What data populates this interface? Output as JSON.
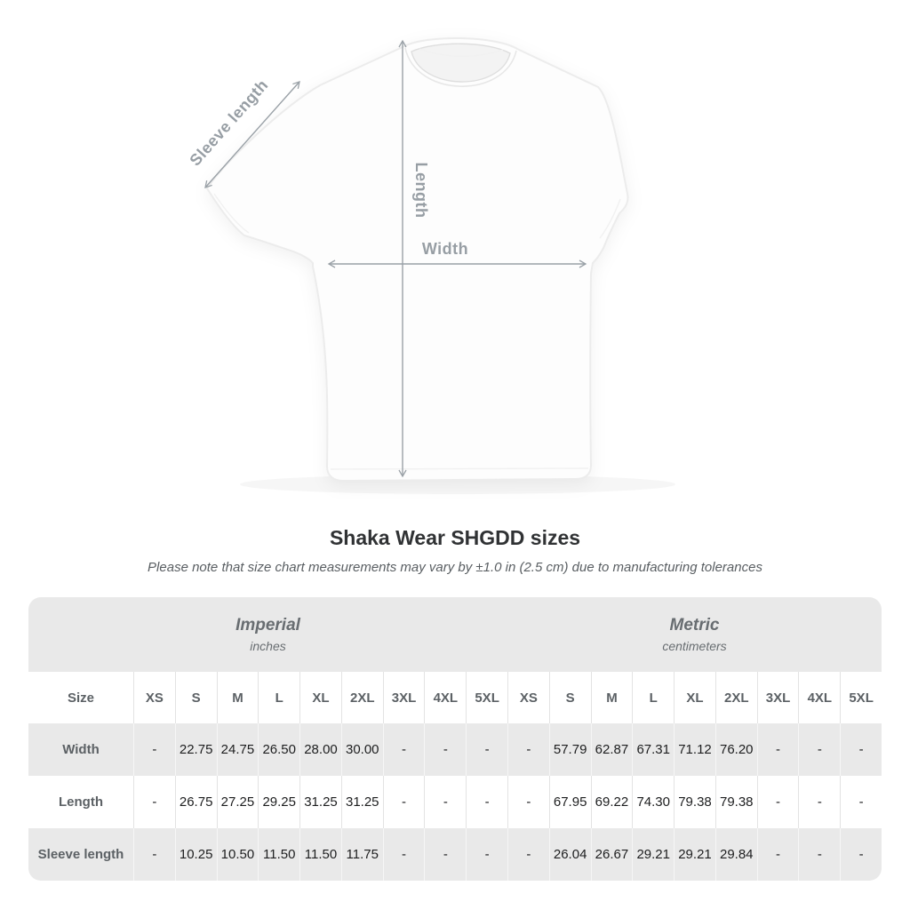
{
  "diagram": {
    "sleeve_label": "Sleeve length",
    "length_label": "Length",
    "width_label": "Width"
  },
  "title": "Shaka Wear SHGDD sizes",
  "subtitle": "Please note that size chart measurements may vary by ±1.0 in (2.5 cm) due to manufacturing tolerances",
  "table": {
    "unit_groups": [
      {
        "name": "Imperial",
        "unit": "inches"
      },
      {
        "name": "Metric",
        "unit": "centimeters"
      }
    ],
    "size_label": "Size",
    "sizes": [
      "XS",
      "S",
      "M",
      "L",
      "XL",
      "2XL",
      "3XL",
      "4XL",
      "5XL"
    ],
    "rows": [
      {
        "label": "Width",
        "imperial": [
          "-",
          "22.75",
          "24.75",
          "26.50",
          "28.00",
          "30.00",
          "-",
          "-",
          "-"
        ],
        "metric": [
          "-",
          "57.79",
          "62.87",
          "67.31",
          "71.12",
          "76.20",
          "-",
          "-",
          "-"
        ]
      },
      {
        "label": "Length",
        "imperial": [
          "-",
          "26.75",
          "27.25",
          "29.25",
          "31.25",
          "31.25",
          "-",
          "-",
          "-"
        ],
        "metric": [
          "-",
          "67.95",
          "69.22",
          "74.30",
          "79.38",
          "79.38",
          "-",
          "-",
          "-"
        ]
      },
      {
        "label": "Sleeve length",
        "imperial": [
          "-",
          "10.25",
          "10.50",
          "11.50",
          "11.50",
          "11.75",
          "-",
          "-",
          "-"
        ],
        "metric": [
          "-",
          "26.04",
          "26.67",
          "29.21",
          "29.21",
          "29.84",
          "-",
          "-",
          "-"
        ]
      }
    ]
  },
  "colors": {
    "table_band_gray": "#e9e9e9",
    "stripe_gray": "#e9e9e9",
    "annotation_gray": "#9aa1a7",
    "label_text": "#5c6165",
    "value_text": "#1d1e1f"
  }
}
